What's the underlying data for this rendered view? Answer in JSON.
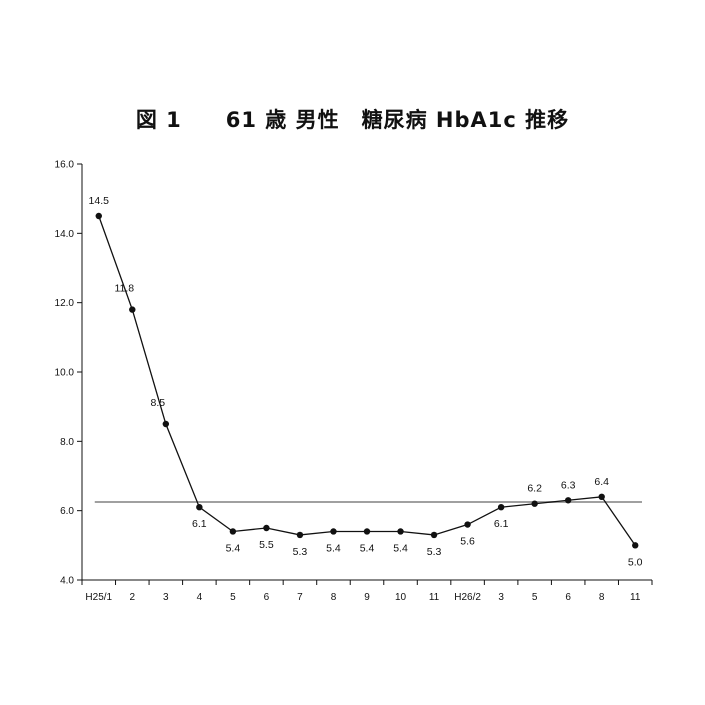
{
  "chart_data": {
    "type": "line",
    "title": "図 1　　61 歳 男性　糖尿病 HbA1c 推移",
    "xlabel": "",
    "ylabel": "",
    "categories": [
      "H25/1",
      "2",
      "3",
      "4",
      "5",
      "6",
      "7",
      "8",
      "9",
      "10",
      "11",
      "H26/2",
      "3",
      "5",
      "6",
      "8",
      "11"
    ],
    "values": [
      14.5,
      11.8,
      8.5,
      6.1,
      5.4,
      5.5,
      5.3,
      5.4,
      5.4,
      5.4,
      5.3,
      5.6,
      6.1,
      6.2,
      6.3,
      6.4,
      5.0
    ],
    "data_labels": [
      "14.5",
      "11.8",
      "8.5",
      "6.1",
      "5.4",
      "5.5",
      "5.3",
      "5.4",
      "5.4",
      "5.4",
      "5.3",
      "5.6",
      "6.1",
      "6.2",
      "6.3",
      "6.4",
      "5.0"
    ],
    "y_ticks": [
      "4.0",
      "6.0",
      "8.0",
      "10.0",
      "12.0",
      "14.0",
      "16.0"
    ],
    "ylim": [
      4.0,
      16.0
    ],
    "reference_line": 6.25,
    "grid": false,
    "legend": "none",
    "colors": {
      "series": "#111111",
      "reference": "#a0a0a0"
    }
  }
}
